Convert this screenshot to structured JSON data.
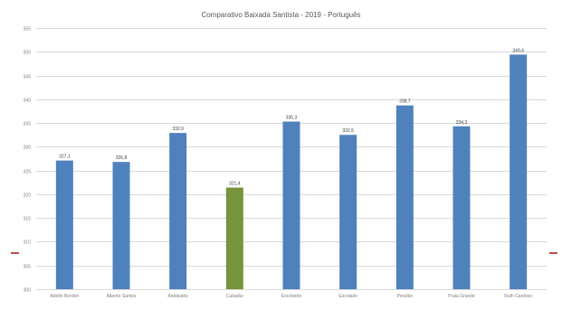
{
  "chart_data": {
    "type": "bar",
    "title": "Comparativo Baixada Santista - 2019 - Português",
    "xlabel": "",
    "ylabel": "",
    "ylim": [
      300,
      355
    ],
    "yticks": [
      300,
      305,
      310,
      315,
      320,
      325,
      330,
      335,
      340,
      345,
      350,
      355
    ],
    "grid": true,
    "legend": "none",
    "categories": [
      "Adolfo Bordon",
      "Alberto Santos",
      "Aldobaldo",
      "Cubatão",
      "Escobedo",
      "Escolado",
      "Peruíbe",
      "Praia Grande",
      "Ruth Cardoso"
    ],
    "values": [
      327.1,
      326.8,
      332.9,
      321.4,
      335.3,
      332.5,
      338.7,
      334.3,
      349.4
    ],
    "data_labels": [
      "327,1",
      "326,8",
      "332,9",
      "321,4",
      "335,3",
      "332,5",
      "338,7",
      "334,3",
      "349,4"
    ],
    "colors": {
      "default": "#4f81bd",
      "highlight": "#77933c",
      "grid": "#d9d9d9",
      "axis_text": "#7f7f7f"
    },
    "bar_colors": [
      "#4f81bd",
      "#4f81bd",
      "#4f81bd",
      "#77933c",
      "#4f81bd",
      "#4f81bd",
      "#4f81bd",
      "#4f81bd",
      "#4f81bd"
    ]
  }
}
